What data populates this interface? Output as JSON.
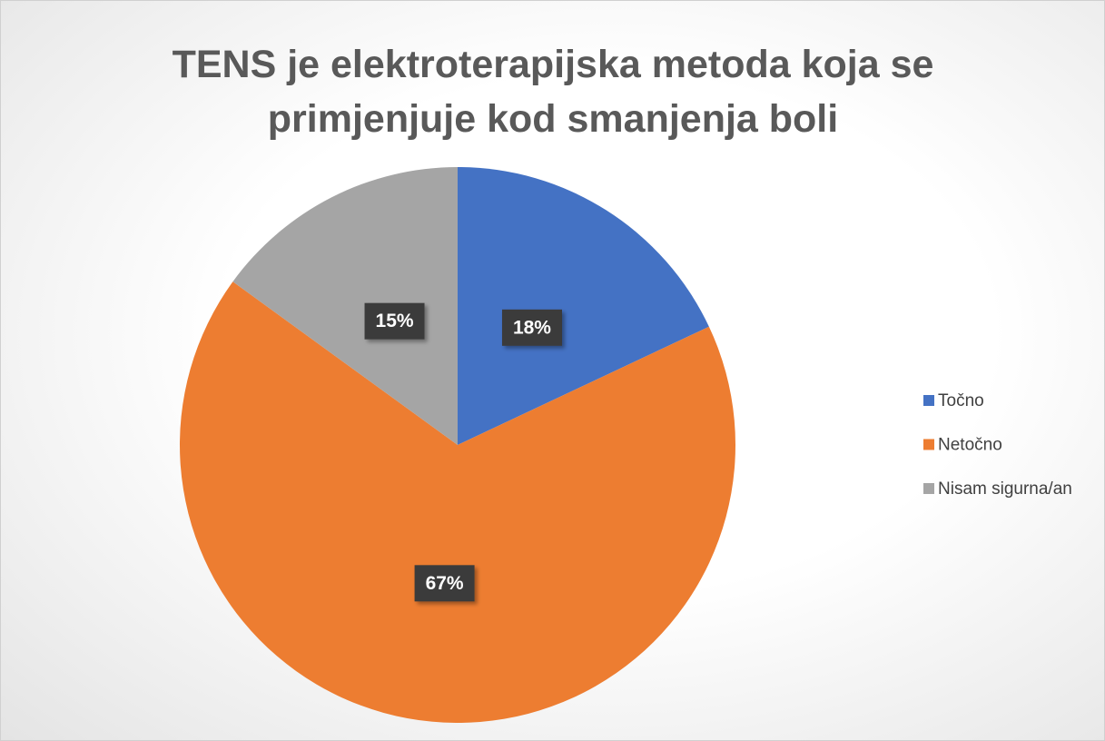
{
  "chart_data": {
    "type": "pie",
    "title": "TENS je elektroterapijska metoda koja se primjenjuje kod smanjenja boli",
    "categories": [
      "Točno",
      "Netočno",
      "Nisam sigurna/an"
    ],
    "values": [
      18,
      67,
      15
    ],
    "value_labels": [
      "18%",
      "67%",
      "15%"
    ],
    "colors": [
      "#4472c4",
      "#ed7d31",
      "#a5a5a5"
    ],
    "legend": "right"
  }
}
